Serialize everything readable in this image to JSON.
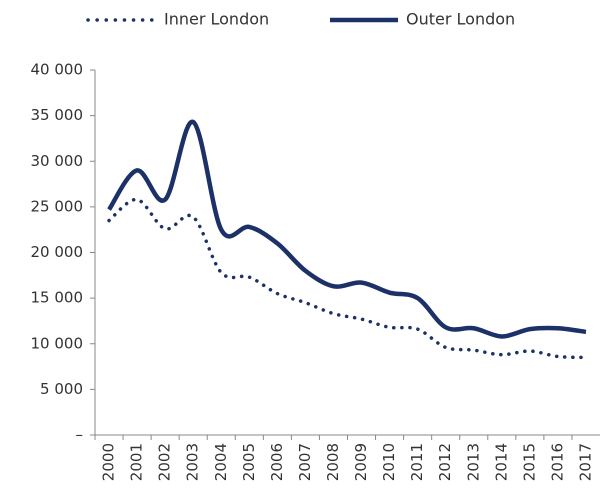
{
  "chart_data": {
    "type": "line",
    "categories": [
      "2000",
      "2001",
      "2002",
      "2003",
      "2004",
      "2005",
      "2006",
      "2007",
      "2008",
      "2009",
      "2010",
      "2011",
      "2012",
      "2013",
      "2014",
      "2015",
      "2016",
      "2017"
    ],
    "series": [
      {
        "name": "Inner London",
        "color": "#1b3168",
        "style": "dotted",
        "values": [
          23500,
          25800,
          22600,
          23900,
          17800,
          17300,
          15500,
          14500,
          13300,
          12700,
          11800,
          11600,
          9600,
          9300,
          8800,
          9200,
          8600,
          8500
        ]
      },
      {
        "name": "Outer London",
        "color": "#1b3168",
        "style": "solid",
        "values": [
          24700,
          29000,
          25800,
          34300,
          22500,
          22800,
          21000,
          18000,
          16300,
          16700,
          15600,
          15000,
          11800,
          11700,
          10800,
          11600,
          11700,
          11300
        ]
      }
    ],
    "ylim": [
      0,
      40000
    ],
    "yticks": [
      {
        "value": 0,
        "label": "–"
      },
      {
        "value": 5000,
        "label": "5 000"
      },
      {
        "value": 10000,
        "label": "10 000"
      },
      {
        "value": 15000,
        "label": "15 000"
      },
      {
        "value": 20000,
        "label": "20 000"
      },
      {
        "value": 25000,
        "label": "25 000"
      },
      {
        "value": 30000,
        "label": "30 000"
      },
      {
        "value": 35000,
        "label": "35 000"
      },
      {
        "value": 40000,
        "label": "40 000"
      }
    ],
    "legend": "top"
  }
}
